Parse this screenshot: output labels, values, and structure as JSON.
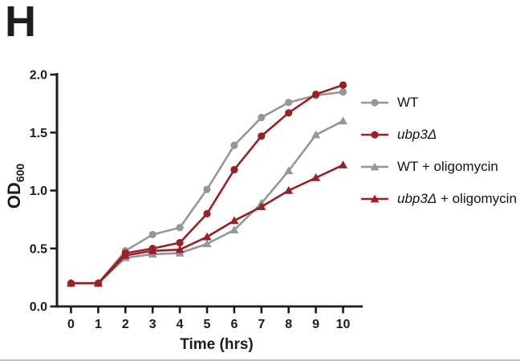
{
  "panel": {
    "label": "H"
  },
  "axes": {
    "x": {
      "label": "Time (hrs)",
      "tick_labels": [
        "0",
        "1",
        "2",
        "3",
        "4",
        "5",
        "6",
        "7",
        "8",
        "9",
        "10"
      ]
    },
    "y": {
      "label_main": "OD",
      "label_sub": "600",
      "tick_labels": [
        "0.0",
        "0.5",
        "1.0",
        "1.5",
        "2.0"
      ]
    }
  },
  "colors": {
    "gray_series": "#949699",
    "red_series": "#9a2025",
    "axis": "#1c1c1c",
    "bottom_edge": "#bfbfbf"
  },
  "legend": {
    "items": [
      {
        "italic": "",
        "text": "WT",
        "marker": "circle",
        "color_key": "gray_series"
      },
      {
        "italic": "ubp3Δ",
        "text": "",
        "marker": "circle",
        "color_key": "red_series"
      },
      {
        "italic": "",
        "text": "WT + oligomycin",
        "marker": "triangle",
        "color_key": "gray_series"
      },
      {
        "italic": "ubp3Δ",
        "text": " + oligomycin",
        "marker": "triangle",
        "color_key": "red_series"
      }
    ]
  },
  "chart_data": {
    "type": "line",
    "title": "",
    "xlabel": "Time (hrs)",
    "ylabel": "OD600",
    "x": [
      0,
      1,
      2,
      3,
      4,
      5,
      6,
      7,
      8,
      9,
      10
    ],
    "x_ticks": [
      0,
      1,
      2,
      3,
      4,
      5,
      6,
      7,
      8,
      9,
      10
    ],
    "y_ticks": [
      0,
      0.5,
      1.0,
      1.5,
      2.0
    ],
    "xlim": [
      0,
      10
    ],
    "ylim": [
      0,
      2.0
    ],
    "grid": false,
    "legend_position": "right",
    "series": [
      {
        "name": "WT",
        "marker": "circle",
        "color_key": "gray_series",
        "values": [
          0.2,
          0.2,
          0.48,
          0.62,
          0.68,
          1.01,
          1.39,
          1.63,
          1.76,
          1.82,
          1.85
        ]
      },
      {
        "name": "ubp3Δ",
        "marker": "circle",
        "color_key": "red_series",
        "values": [
          0.2,
          0.2,
          0.46,
          0.5,
          0.55,
          0.8,
          1.18,
          1.47,
          1.67,
          1.83,
          1.91
        ]
      },
      {
        "name": "WT + oligomycin",
        "marker": "triangle",
        "color_key": "gray_series",
        "values": [
          0.2,
          0.2,
          0.42,
          0.45,
          0.46,
          0.54,
          0.66,
          0.89,
          1.17,
          1.48,
          1.6
        ]
      },
      {
        "name": "ubp3Δ + oligomycin",
        "marker": "triangle",
        "color_key": "red_series",
        "values": [
          0.2,
          0.2,
          0.44,
          0.48,
          0.49,
          0.6,
          0.74,
          0.86,
          1.0,
          1.11,
          1.22
        ]
      }
    ]
  }
}
